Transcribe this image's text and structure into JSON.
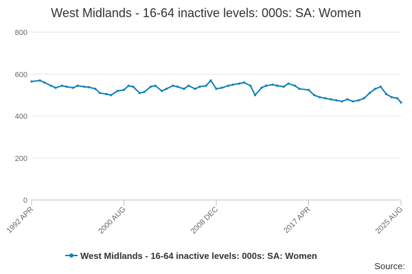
{
  "chart_data": {
    "type": "line",
    "title": "West Midlands - 16-64 inactive levels: 000s: SA: Women",
    "xlabel": "",
    "ylabel": "",
    "ylim": [
      0,
      800
    ],
    "y_ticks": [
      "0",
      "200",
      "400",
      "600",
      "800"
    ],
    "x_ticks": [
      "1992 APR",
      "2000 AUG",
      "2008 DEC",
      "2017 APR",
      "2025 AUG"
    ],
    "x_range": [
      "1992-04",
      "2025-08"
    ],
    "grid": "horizontal",
    "legend_position": "bottom",
    "series": [
      {
        "name": "West Midlands - 16-64 inactive levels: 000s: SA: Women",
        "color": "#0d7fb6",
        "x": [
          "1992-04",
          "1993-01",
          "1993-06",
          "1994-01",
          "1994-06",
          "1995-01",
          "1995-06",
          "1996-01",
          "1996-06",
          "1997-01",
          "1997-06",
          "1998-01",
          "1998-06",
          "1999-01",
          "1999-06",
          "2000-01",
          "2000-08",
          "2001-01",
          "2001-06",
          "2002-01",
          "2002-06",
          "2003-01",
          "2003-06",
          "2004-01",
          "2004-06",
          "2005-01",
          "2005-06",
          "2006-01",
          "2006-06",
          "2007-01",
          "2007-06",
          "2008-01",
          "2008-06",
          "2008-12",
          "2009-06",
          "2010-01",
          "2010-06",
          "2011-01",
          "2011-06",
          "2012-01",
          "2012-06",
          "2013-01",
          "2013-06",
          "2014-01",
          "2014-06",
          "2015-01",
          "2015-06",
          "2016-01",
          "2016-06",
          "2017-04",
          "2017-10",
          "2018-04",
          "2018-10",
          "2019-04",
          "2019-10",
          "2020-04",
          "2020-10",
          "2021-04",
          "2021-10",
          "2022-04",
          "2022-10",
          "2023-04",
          "2023-10",
          "2024-04",
          "2024-10",
          "2025-04",
          "2025-08"
        ],
        "values": [
          565,
          570,
          560,
          545,
          535,
          545,
          540,
          535,
          545,
          540,
          538,
          530,
          510,
          505,
          500,
          520,
          525,
          545,
          540,
          510,
          515,
          540,
          545,
          520,
          530,
          545,
          540,
          530,
          545,
          530,
          540,
          545,
          570,
          530,
          535,
          545,
          550,
          555,
          560,
          545,
          500,
          535,
          545,
          550,
          545,
          540,
          555,
          545,
          530,
          525,
          500,
          490,
          485,
          480,
          475,
          470,
          480,
          470,
          475,
          485,
          510,
          530,
          540,
          505,
          490,
          485,
          465
        ]
      }
    ],
    "legend": "West Midlands - 16-64 inactive levels: 000s: SA: Women",
    "source_label": "Source:"
  }
}
